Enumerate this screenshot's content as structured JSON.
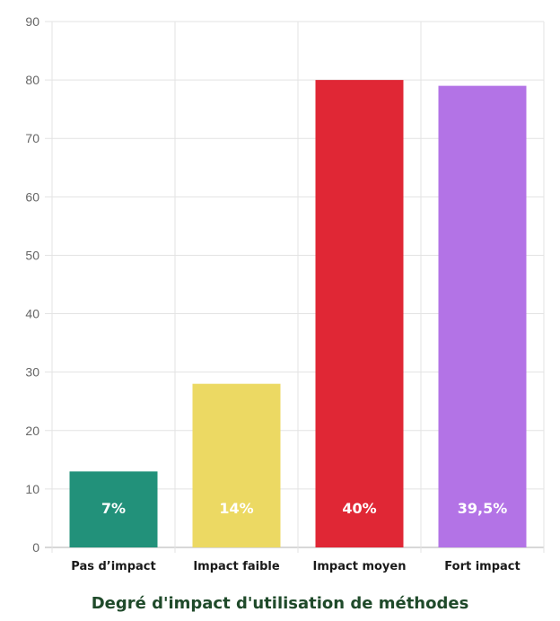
{
  "chart_data": {
    "type": "bar",
    "title": "Degré d'impact d'utilisation de méthodes",
    "xlabel": "",
    "ylabel": "",
    "ylim": [
      0,
      90
    ],
    "yticks": [
      0,
      10,
      20,
      30,
      40,
      50,
      60,
      70,
      80,
      90
    ],
    "grid": true,
    "legend": "none",
    "categories": [
      "Pas d’impact",
      "Impact faible",
      "Impact moyen",
      "Fort impact"
    ],
    "values": [
      13,
      28,
      80,
      79
    ],
    "data_labels": [
      "7%",
      "14%",
      "40%",
      "39,5%"
    ],
    "colors": [
      "#22917a",
      "#ecd963",
      "#e02735",
      "#b373e6"
    ],
    "grid_color": "#e3e3e3",
    "axis_color": "#b0b0b0"
  }
}
